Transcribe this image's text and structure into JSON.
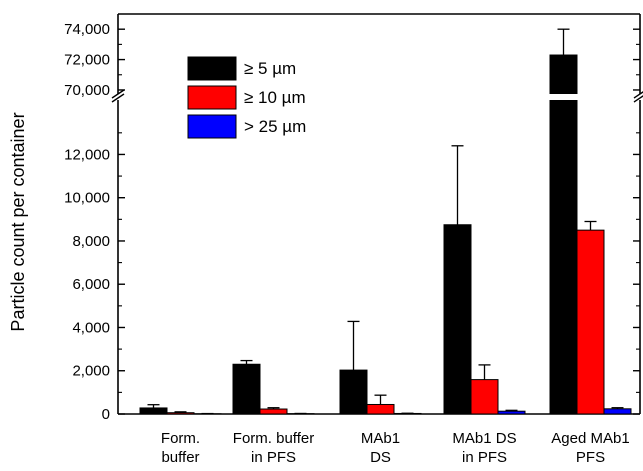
{
  "chart_data": {
    "type": "bar",
    "ylabel": "Particle count per container",
    "xlabel": "",
    "title": "",
    "categories": [
      [
        "Form.",
        "buffer"
      ],
      [
        "Form. buffer",
        "in PFS"
      ],
      [
        "MAb1",
        "DS"
      ],
      [
        "MAb1 DS",
        "in PFS"
      ],
      [
        "Aged MAb1",
        "PFS"
      ]
    ],
    "series": [
      {
        "name": "≥ 5 µm",
        "color": "#000000",
        "values": [
          280,
          2300,
          2030,
          8750,
          72300
        ],
        "errors": [
          150,
          170,
          2250,
          3650,
          1700
        ]
      },
      {
        "name": "≥ 10 µm",
        "color": "#ff0000",
        "values": [
          60,
          230,
          440,
          1590,
          8500
        ],
        "errors": [
          40,
          60,
          430,
          680,
          400
        ]
      },
      {
        "name": "> 25 µm",
        "color": "#0000ff",
        "values": [
          10,
          15,
          25,
          130,
          240
        ],
        "errors": [
          10,
          10,
          10,
          40,
          50
        ]
      }
    ],
    "ylim_lower": [
      0,
      13500
    ],
    "ylim_upper": [
      69800,
      75000
    ],
    "ytick_labels_lower": [
      "0",
      "2,000",
      "4,000",
      "6,000",
      "8,000",
      "10,000",
      "12,000"
    ],
    "ytick_values_lower": [
      0,
      2000,
      4000,
      6000,
      8000,
      10000,
      12000
    ],
    "ytick_labels_upper": [
      "70,000",
      "72,000",
      "74,000"
    ],
    "ytick_values_upper": [
      70000,
      72000,
      74000
    ],
    "axis_break": true,
    "legend_position": "top-left",
    "grid": false
  }
}
